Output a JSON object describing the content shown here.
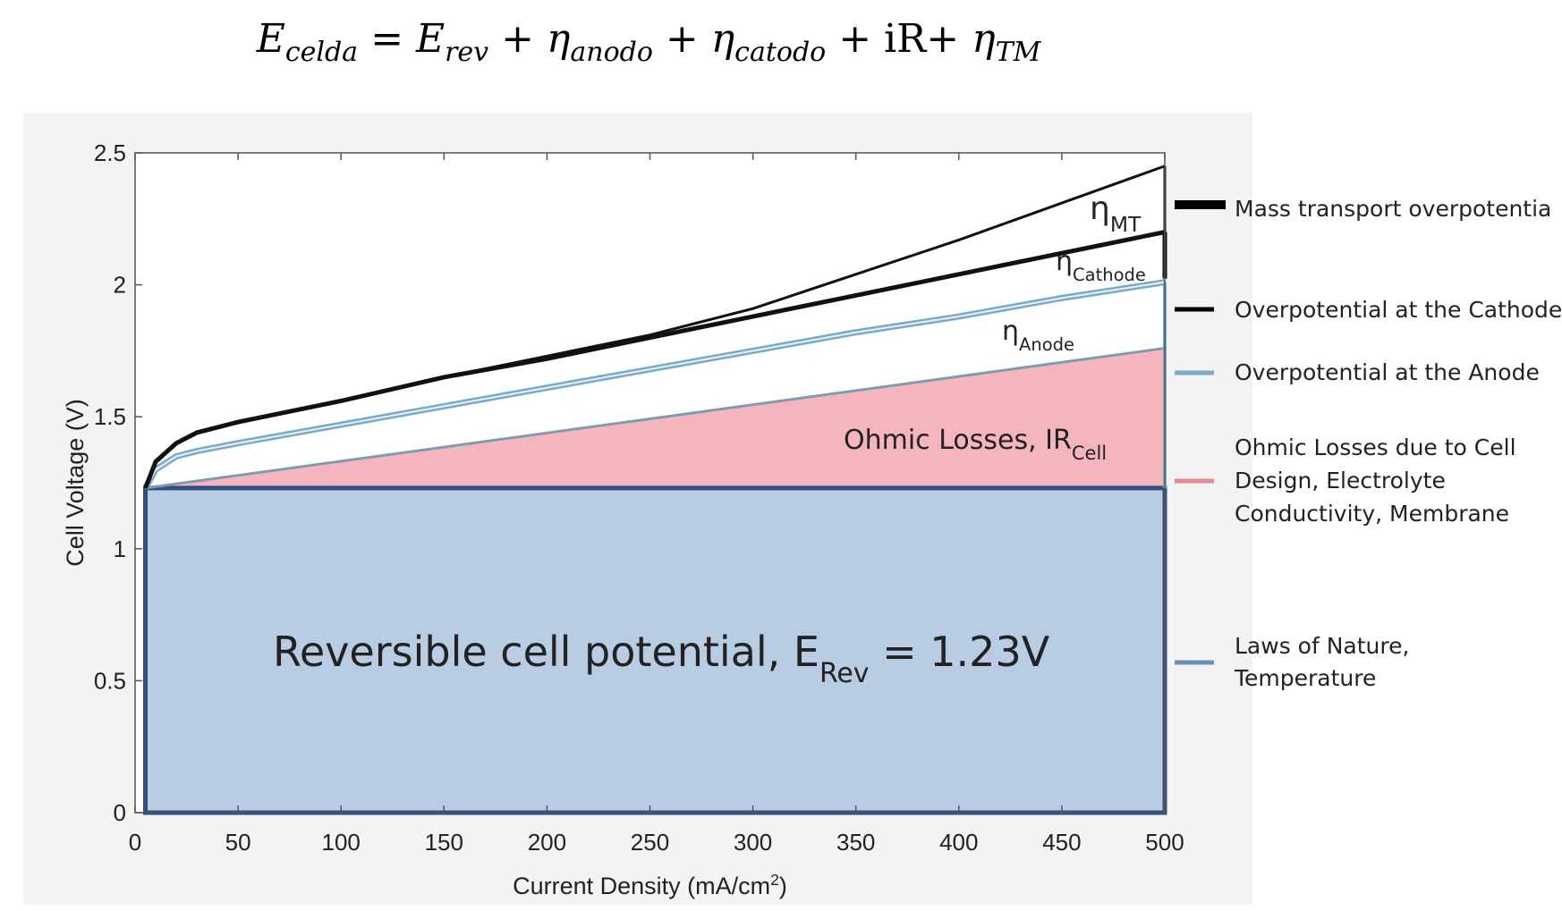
{
  "formula": {
    "lhs": "E",
    "lhs_sub": "celda",
    "equals": "=",
    "term1": "E",
    "term1_sub": "rev",
    "term2": "η",
    "term2_sub": "anodo",
    "term3": "η",
    "term3_sub": "catodo",
    "term4": "iR+",
    "term5": "η",
    "term5_sub": "TM",
    "plus": "+"
  },
  "colors": {
    "reversible_fill": "#b8cce4",
    "reversible_border": "#2e4f7f",
    "ohmic_fill": "#f4b5bf",
    "anode_line": "#7aaac8",
    "cathode_line": "#111111",
    "mt_line": "#111111"
  },
  "chart_data": {
    "type": "area",
    "xlabel": "Current Density (mA/cm",
    "xlabel_sup": "2",
    "xlabel_end": ")",
    "ylabel": "Cell Voltage (V)",
    "xlim": [
      0,
      500
    ],
    "ylim": [
      0,
      2.5
    ],
    "x_ticks": [
      "0",
      "50",
      "100",
      "150",
      "200",
      "250",
      "300",
      "350",
      "400",
      "450",
      "500"
    ],
    "y_ticks": [
      "0",
      "0.5",
      "1",
      "1.5",
      "2",
      "2.5"
    ],
    "legend_position": "right",
    "series": [
      {
        "name": "Mass transport overpotentia",
        "symbol": "η",
        "symbol_sub": "MT",
        "x": [
          5,
          10,
          20,
          30,
          50,
          100,
          150,
          200,
          250,
          300,
          350,
          400,
          450,
          500
        ],
        "y": [
          1.23,
          1.33,
          1.4,
          1.44,
          1.48,
          1.56,
          1.65,
          1.73,
          1.81,
          1.91,
          2.04,
          2.17,
          2.31,
          2.45
        ]
      },
      {
        "name": "Overpotential at the Cathode",
        "symbol": "η",
        "symbol_sub": "Cathode",
        "x": [
          5,
          10,
          20,
          30,
          50,
          100,
          150,
          200,
          250,
          300,
          350,
          400,
          450,
          500
        ],
        "y": [
          1.23,
          1.33,
          1.4,
          1.44,
          1.48,
          1.56,
          1.65,
          1.72,
          1.8,
          1.88,
          1.96,
          2.04,
          2.12,
          2.2
        ]
      },
      {
        "name": "Overpotential at the Anode",
        "symbol": "η",
        "symbol_sub": "Anode",
        "x": [
          5,
          10,
          20,
          30,
          50,
          100,
          150,
          200,
          250,
          300,
          350,
          400,
          450,
          500
        ],
        "y": [
          1.23,
          1.3,
          1.35,
          1.37,
          1.4,
          1.47,
          1.54,
          1.61,
          1.68,
          1.75,
          1.82,
          1.88,
          1.95,
          2.01
        ]
      },
      {
        "name": "Ohmic Losses due to Cell Design, Electrolyte Conductivity,  Membrane",
        "legend_lines": [
          "Ohmic Losses due to Cell",
          "Design, Electrolyte",
          "Conductivity,  Membrane"
        ],
        "label": "Ohmic Losses, IR",
        "label_sub": "Cell",
        "x": [
          5,
          500
        ],
        "y": [
          1.23,
          1.76
        ]
      },
      {
        "name": "Laws of Nature, Temperature",
        "legend_lines": [
          "Laws of Nature,",
          "Temperature"
        ],
        "label": "Reversible cell potential, E",
        "label_sub": "Rev",
        "label_end": " = 1.23V",
        "x": [
          5,
          500
        ],
        "y": [
          1.23,
          1.23
        ]
      }
    ]
  }
}
